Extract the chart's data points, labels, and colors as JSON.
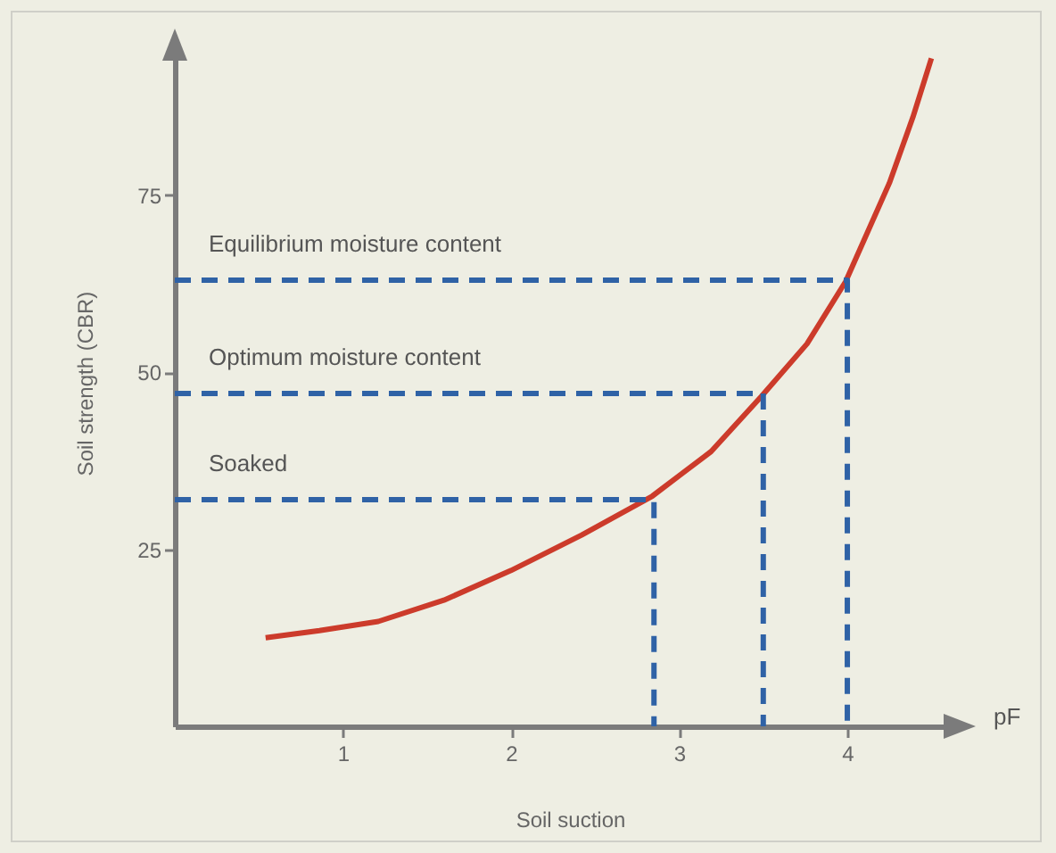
{
  "chart_data": {
    "type": "line",
    "xlabel": "Soil suction",
    "ylabel": "Soil strength (CBR)",
    "xlim": [
      0,
      4.7
    ],
    "ylim": [
      0,
      97
    ],
    "xticks": [
      1,
      2,
      3,
      4
    ],
    "yticks": [
      25,
      50,
      75
    ],
    "series": [
      {
        "color": "#cc3b2b",
        "line_style": "solid",
        "x": [
          0.54,
          0.86,
          1.21,
          1.6,
          2.0,
          2.42,
          2.84,
          3.19,
          3.49,
          3.76,
          3.99,
          4.25,
          4.39,
          4.5
        ],
        "values": [
          12.5,
          13.5,
          14.8,
          17.8,
          22,
          27,
          32.5,
          38.8,
          46.6,
          54,
          62.8,
          76.7,
          86,
          94.3
        ]
      },
      {
        "color": "#2f62a6",
        "line_style": "dashed",
        "x": [
          0,
          4.0,
          4.0
        ],
        "values": [
          63,
          63,
          0
        ]
      },
      {
        "color": "#2f62a6",
        "line_style": "dashed",
        "x": [
          0,
          3.5,
          3.5
        ],
        "values": [
          47,
          47,
          0
        ]
      },
      {
        "color": "#2f62a6",
        "line_style": "dashed",
        "x": [
          0,
          2.85,
          2.85
        ],
        "values": [
          32,
          32,
          0
        ]
      }
    ],
    "annotations": [
      "Equilibrium moisture content",
      "Optimum moisture content",
      "Soaked",
      "pF"
    ]
  }
}
